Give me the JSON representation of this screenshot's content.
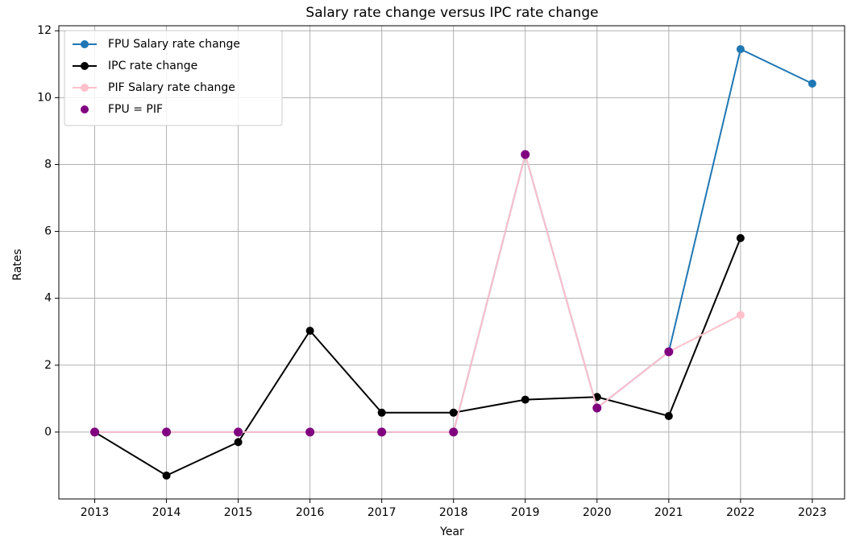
{
  "chart_data": {
    "type": "line",
    "title": "Salary rate change versus IPC rate change",
    "xlabel": "Year",
    "ylabel": "Rates",
    "x": [
      2013,
      2014,
      2015,
      2016,
      2017,
      2018,
      2019,
      2020,
      2021,
      2022,
      2023
    ],
    "series": [
      {
        "name": "FPU Salary rate change",
        "color": "#1f77b4",
        "values": [
          0,
          0,
          0,
          0,
          0,
          0,
          8.3,
          0.72,
          2.4,
          11.45,
          10.42
        ]
      },
      {
        "name": "IPC rate change",
        "color": "#000000",
        "values": [
          0,
          -1.3,
          -0.3,
          3.03,
          0.58,
          0.58,
          0.97,
          1.05,
          0.48,
          5.8,
          null
        ]
      },
      {
        "name": "PIF Salary rate change",
        "color": "#ffc0cb",
        "values": [
          0,
          0,
          0,
          0,
          0,
          0,
          8.3,
          0.72,
          2.4,
          3.5,
          null
        ]
      },
      {
        "name": "FPU = PIF",
        "type": "scatter",
        "color": "#800080",
        "values": [
          0,
          0,
          0,
          0,
          0,
          0,
          8.3,
          0.72,
          2.4,
          null,
          null
        ]
      }
    ],
    "xlim": [
      2012.5,
      2023.45
    ],
    "xticks": [
      2013,
      2014,
      2015,
      2016,
      2017,
      2018,
      2019,
      2020,
      2021,
      2022,
      2023
    ],
    "ylim": [
      -2,
      12.15
    ],
    "yticks": [
      0,
      2,
      4,
      6,
      8,
      10,
      12
    ],
    "grid": true,
    "legend": "upper left"
  }
}
